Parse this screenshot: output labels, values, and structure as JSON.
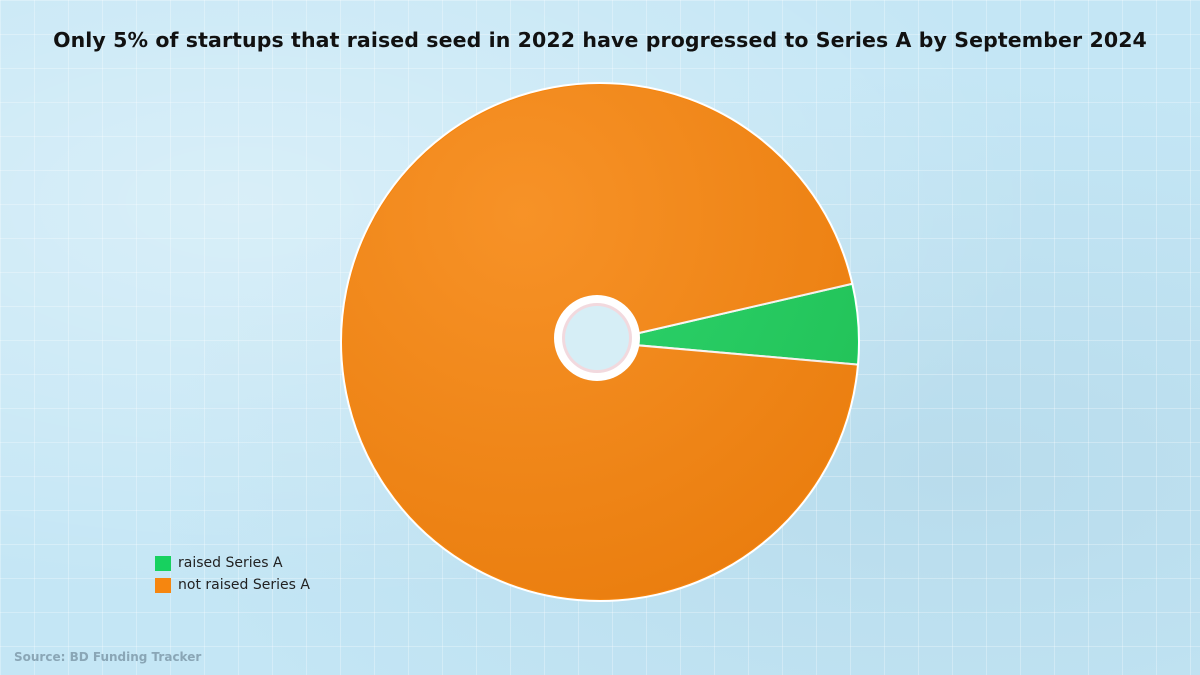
{
  "title": "Only 5% of startups that raised seed in 2022 have progressed to Series A by September 2024",
  "source": "Source: BD Funding Tracker",
  "colors": {
    "raised": "#17d15f",
    "not_raised": "#f6860f",
    "background": "#c4e6f5"
  },
  "chart_data": {
    "type": "pie",
    "title": "Only 5% of startups that raised seed in 2022 have progressed to Series A by September 2024",
    "legend_position": "bottom-left",
    "donut_hole": true,
    "slices": [
      {
        "label": "raised Series A",
        "value": 5,
        "color": "#17d15f"
      },
      {
        "label": "not raised Series A",
        "value": 95,
        "color": "#f6860f"
      }
    ]
  },
  "legend": [
    {
      "label": "raised Series A",
      "color": "#17d15f"
    },
    {
      "label": "not raised Series A",
      "color": "#f6860f"
    }
  ]
}
